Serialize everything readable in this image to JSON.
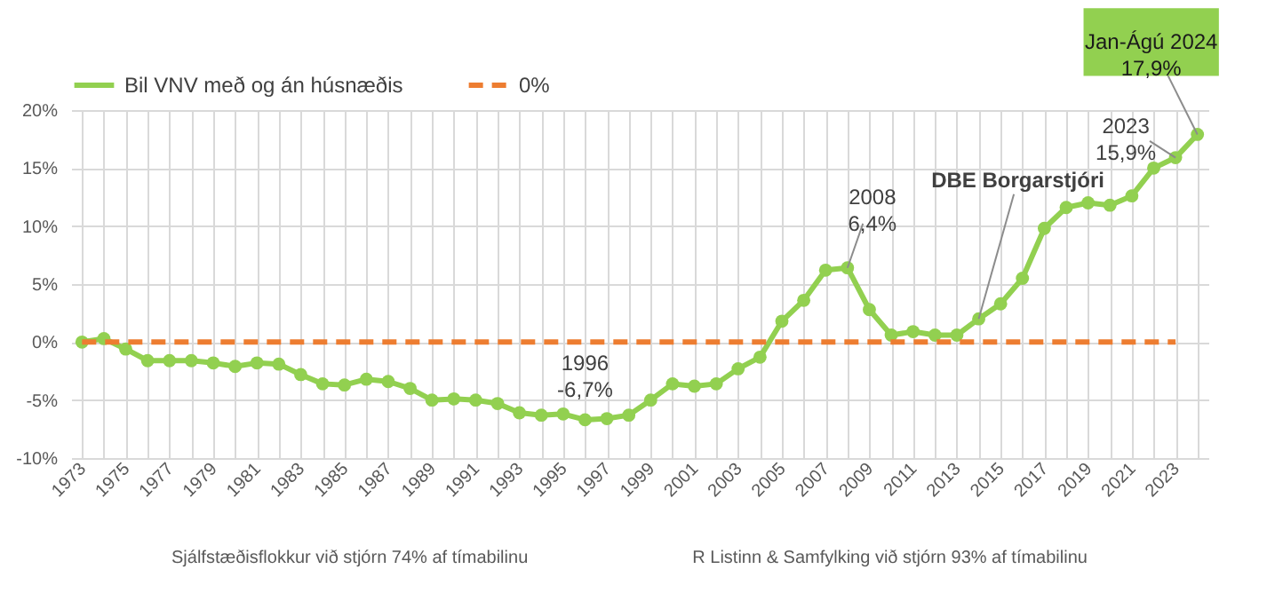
{
  "chart_data": {
    "type": "line",
    "x": [
      1973,
      1974,
      1975,
      1976,
      1977,
      1978,
      1979,
      1980,
      1981,
      1982,
      1983,
      1984,
      1985,
      1986,
      1987,
      1988,
      1989,
      1990,
      1991,
      1992,
      1993,
      1994,
      1995,
      1996,
      1997,
      1998,
      1999,
      2000,
      2001,
      2002,
      2003,
      2004,
      2005,
      2006,
      2007,
      2008,
      2009,
      2010,
      2011,
      2012,
      2013,
      2014,
      2015,
      2016,
      2017,
      2018,
      2019,
      2020,
      2021,
      2022,
      2023,
      2024
    ],
    "series": [
      {
        "name": "Bil VNV með og án húsnæðis",
        "color": "#92d050",
        "marker": "circle",
        "line_style": "solid",
        "values": [
          0,
          0.3,
          -0.6,
          -1.6,
          -1.6,
          -1.6,
          -1.8,
          -2.1,
          -1.8,
          -1.9,
          -2.8,
          -3.6,
          -3.7,
          -3.2,
          -3.4,
          -4.0,
          -5.0,
          -4.9,
          -5.0,
          -5.3,
          -6.1,
          -6.3,
          -6.2,
          -6.7,
          -6.6,
          -6.3,
          -5.0,
          -3.6,
          -3.8,
          -3.6,
          -2.3,
          -1.3,
          1.8,
          3.6,
          6.2,
          6.4,
          2.8,
          0.6,
          0.9,
          0.6,
          0.6,
          2.0,
          3.3,
          5.5,
          9.8,
          11.6,
          12.0,
          11.8,
          12.6,
          15.0,
          15.9,
          17.9
        ]
      },
      {
        "name": "0%",
        "color": "#ed7d31",
        "marker": "none",
        "line_style": "dashed",
        "values": [
          0,
          0,
          0,
          0,
          0,
          0,
          0,
          0,
          0,
          0,
          0,
          0,
          0,
          0,
          0,
          0,
          0,
          0,
          0,
          0,
          0,
          0,
          0,
          0,
          0,
          0,
          0,
          0,
          0,
          0,
          0,
          0,
          0,
          0,
          0,
          0,
          0,
          0,
          0,
          0,
          0,
          0,
          0,
          0,
          0,
          0,
          0,
          0,
          0,
          0,
          0,
          null
        ]
      }
    ],
    "xlim": [
      1972.5,
      2024.5
    ],
    "xticks": [
      1973,
      {
        "value": 1974,
        "label": null
      },
      1975,
      {
        "value": 1976,
        "label": null
      },
      1977,
      {
        "value": 1978,
        "label": null
      },
      1979,
      {
        "value": 1980,
        "label": null
      },
      1981,
      {
        "value": 1982,
        "label": null
      },
      1983,
      {
        "value": 1984,
        "label": null
      },
      1985,
      {
        "value": 1986,
        "label": null
      },
      1987,
      {
        "value": 1988,
        "label": null
      },
      1989,
      {
        "value": 1990,
        "label": null
      },
      1991,
      {
        "value": 1992,
        "label": null
      },
      1993,
      {
        "value": 1994,
        "label": null
      },
      1995,
      {
        "value": 1996,
        "label": null
      },
      1997,
      {
        "value": 1998,
        "label": null
      },
      1999,
      {
        "value": 2000,
        "label": null
      },
      2001,
      {
        "value": 2002,
        "label": null
      },
      2003,
      {
        "value": 2004,
        "label": null
      },
      2005,
      {
        "value": 2006,
        "label": null
      },
      2007,
      {
        "value": 2008,
        "label": null
      },
      2009,
      {
        "value": 2010,
        "label": null
      },
      2011,
      {
        "value": 2012,
        "label": null
      },
      2013,
      {
        "value": 2014,
        "label": null
      },
      2015,
      {
        "value": 2016,
        "label": null
      },
      2017,
      {
        "value": 2018,
        "label": null
      },
      2019,
      {
        "value": 2020,
        "label": null
      },
      2021,
      {
        "value": 2022,
        "label": null
      },
      2023,
      {
        "value": 2024,
        "label": null
      }
    ],
    "ylim": [
      -10,
      20
    ],
    "yticks": [
      {
        "value": -10,
        "label": "-10%"
      },
      {
        "value": -5,
        "label": "-5%"
      },
      {
        "value": 0,
        "label": "0%"
      },
      {
        "value": 5,
        "label": "5%"
      },
      {
        "value": 10,
        "label": "10%"
      },
      {
        "value": 15,
        "label": "15%"
      },
      {
        "value": 20,
        "label": "20%"
      }
    ],
    "grid": true,
    "legend": "top",
    "annotations": [
      {
        "text": "1996\n-6,7%",
        "x": 1996,
        "y": -6.7
      },
      {
        "text": "2008\n6,4%",
        "x": 2008,
        "y": 6.4
      },
      {
        "text": "DBE Borgarstjóri",
        "x": 2014,
        "y": 2.0
      },
      {
        "text": "2023\n15,9%",
        "x": 2023,
        "y": 15.9
      },
      {
        "text": "Jan-Ágú 2024\n17,9%",
        "x": 2024,
        "y": 17.9
      },
      "Sjálfstæðisflokkur við stjórn 74% af tímabilinu",
      "R Listinn & Samfylking við stjórn 93% af tímabilinu"
    ]
  }
}
